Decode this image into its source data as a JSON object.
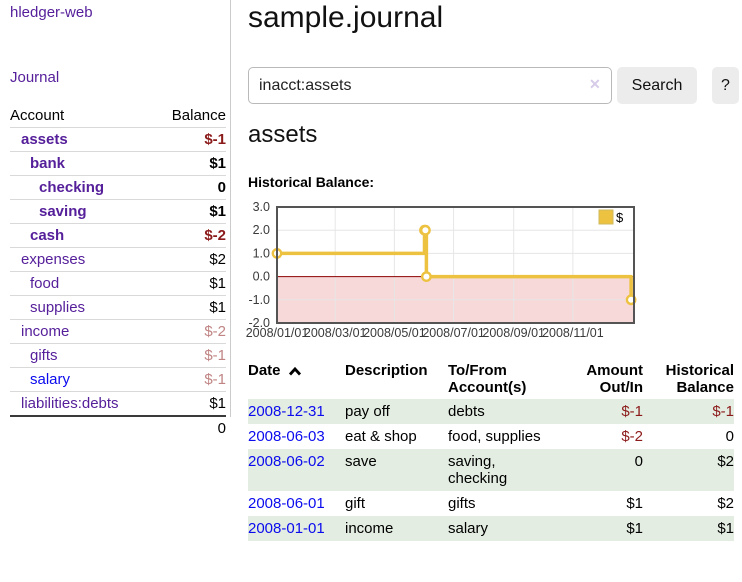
{
  "colors": {
    "purple": "#56209b",
    "blue": "#0b0bee",
    "negative": "#8b1a1a",
    "negative_faint": "#c08484",
    "row_green": "#e3ede1",
    "gold": "#edc240",
    "button_bg": "#ececec",
    "divider": "#cccccc"
  },
  "sidebar": {
    "brand": "hledger-web",
    "journal_label": "Journal",
    "accounts": {
      "header_account": "Account",
      "header_balance": "Balance",
      "rows": [
        {
          "name": "assets",
          "depth": 1,
          "strong": true,
          "name_color": "purple",
          "balance": "$-1",
          "balance_color": "negative"
        },
        {
          "name": "bank",
          "depth": 2,
          "strong": true,
          "name_color": "purple",
          "balance": "$1",
          "balance_color": "black"
        },
        {
          "name": "checking",
          "depth": 3,
          "strong": true,
          "name_color": "purple",
          "balance": "0",
          "balance_color": "black"
        },
        {
          "name": "saving",
          "depth": 3,
          "strong": true,
          "name_color": "purple",
          "balance": "$1",
          "balance_color": "black"
        },
        {
          "name": "cash",
          "depth": 2,
          "strong": true,
          "name_color": "purple",
          "balance": "$-2",
          "balance_color": "negative"
        },
        {
          "name": "expenses",
          "depth": 1,
          "strong": false,
          "name_color": "purple",
          "balance": "$2",
          "balance_color": "black"
        },
        {
          "name": "food",
          "depth": 2,
          "strong": false,
          "name_color": "purple",
          "balance": "$1",
          "balance_color": "black"
        },
        {
          "name": "supplies",
          "depth": 2,
          "strong": false,
          "name_color": "purple",
          "balance": "$1",
          "balance_color": "black"
        },
        {
          "name": "income",
          "depth": 1,
          "strong": false,
          "name_color": "purple",
          "balance": "$-2",
          "balance_color": "negative_faint"
        },
        {
          "name": "gifts",
          "depth": 2,
          "strong": false,
          "name_color": "purple",
          "balance": "$-1",
          "balance_color": "negative_faint"
        },
        {
          "name": "salary",
          "depth": 2,
          "strong": false,
          "name_color": "blue",
          "balance": "$-1",
          "balance_color": "negative_faint"
        },
        {
          "name": "liabilities:debts",
          "depth": 1,
          "strong": false,
          "name_color": "purple",
          "balance": "$1",
          "balance_color": "black"
        }
      ],
      "total": "0"
    }
  },
  "main": {
    "title": "sample.journal",
    "search": {
      "value": "inacct:assets",
      "clear_icon": "✕",
      "button_label": "Search",
      "help_label": "?"
    },
    "account_heading": "assets",
    "section_label": "Historical Balance:"
  },
  "chart_data": {
    "type": "line",
    "step": true,
    "title": "Historical Balance:",
    "series": [
      {
        "name": "$",
        "color": "#edc240",
        "points": [
          [
            "2008-01-01",
            1
          ],
          [
            "2008-06-01",
            2
          ],
          [
            "2008-06-02",
            2
          ],
          [
            "2008-06-03",
            0
          ],
          [
            "2008-12-31",
            -1
          ]
        ]
      }
    ],
    "x_range": [
      "2008-01-01",
      "2009-01-03"
    ],
    "y_range": [
      -2,
      3
    ],
    "y_ticks": [
      "3.0",
      "2.0",
      "1.0",
      "0.0",
      "-1.0",
      "-2.0"
    ],
    "x_ticks": [
      {
        "date": "2008-01-01",
        "label": "2008/01/01"
      },
      {
        "date": "2008-03-01",
        "label": "2008/03/01"
      },
      {
        "date": "2008-05-01",
        "label": "2008/05/01"
      },
      {
        "date": "2008-07-01",
        "label": "2008/07/01"
      },
      {
        "date": "2008-09-01",
        "label": "2008/09/01"
      },
      {
        "date": "2008-11-01",
        "label": "2008/11/01"
      }
    ],
    "legend": {
      "label": "$",
      "position": "top-right"
    },
    "grid": true,
    "grid_color": "#e6e6e6",
    "border_color": "#545454",
    "tick_color": "#3a3a3a",
    "zero_line_color": "#8b0000",
    "negative_region_color": "#f8d9d9"
  },
  "register": {
    "headers": {
      "date": "Date",
      "sort": "ascending",
      "description": "Description",
      "accounts": "To/From Account(s)",
      "amount": "Amount Out/In",
      "balance": "Historical Balance"
    },
    "rows": [
      {
        "date": "2008-12-31",
        "description": "pay off",
        "accounts": "debts",
        "amount": "$-1",
        "amount_color": "negative",
        "balance": "$-1",
        "balance_color": "negative",
        "shaded": true
      },
      {
        "date": "2008-06-03",
        "description": "eat & shop",
        "accounts": "food, supplies",
        "amount": "$-2",
        "amount_color": "negative",
        "balance": "0",
        "balance_color": "black",
        "shaded": false
      },
      {
        "date": "2008-06-02",
        "description": "save",
        "accounts": "saving,\nchecking",
        "amount": "0",
        "amount_color": "black",
        "balance": "$2",
        "balance_color": "black",
        "shaded": true
      },
      {
        "date": "2008-06-01",
        "description": "gift",
        "accounts": "gifts",
        "amount": "$1",
        "amount_color": "black",
        "balance": "$2",
        "balance_color": "black",
        "shaded": false
      },
      {
        "date": "2008-01-01",
        "description": "income",
        "accounts": "salary",
        "amount": "$1",
        "amount_color": "black",
        "balance": "$1",
        "balance_color": "black",
        "shaded": true
      }
    ]
  }
}
